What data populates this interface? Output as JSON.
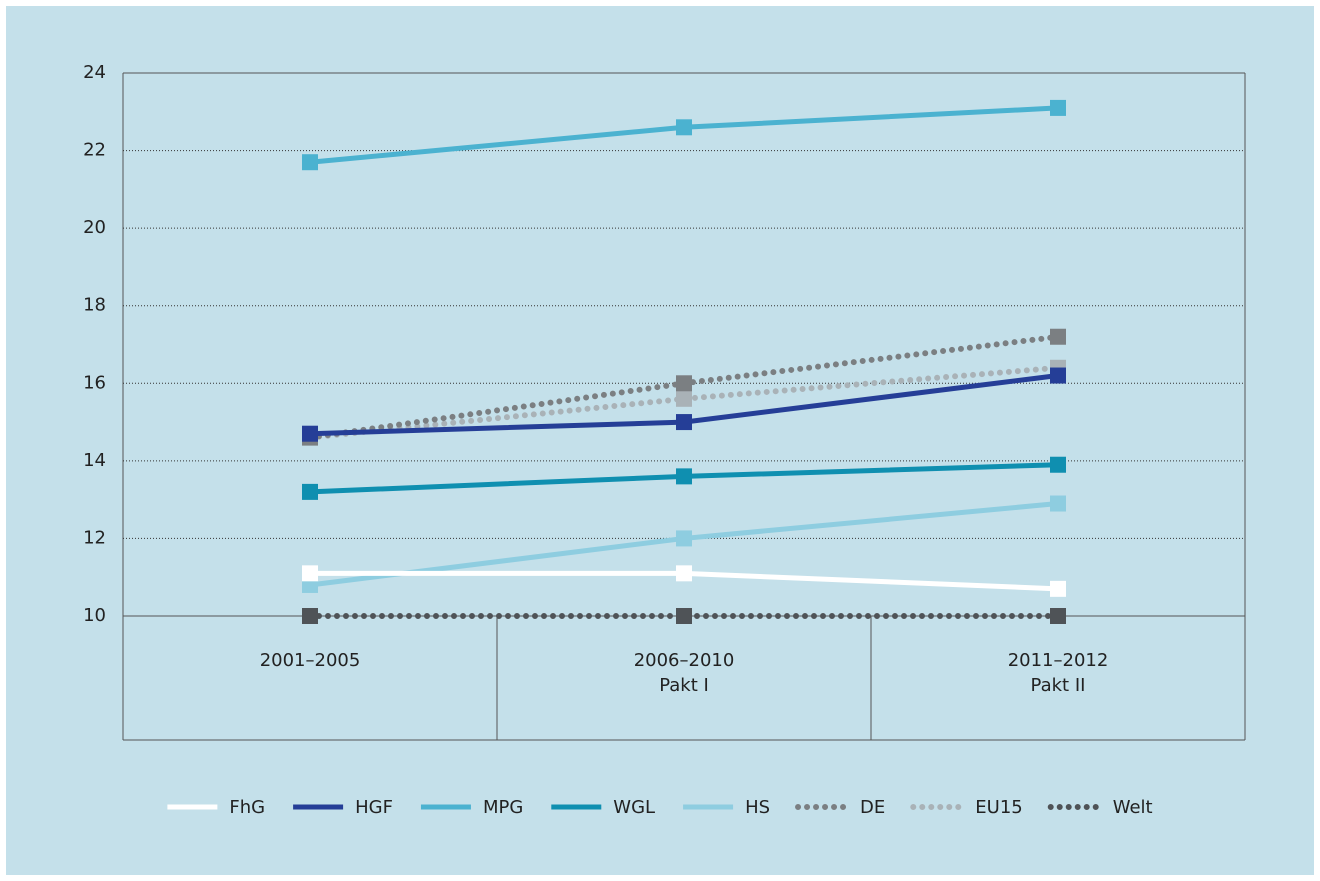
{
  "chart_data": {
    "type": "line",
    "categories": [
      [
        "2001–2005"
      ],
      [
        "2006–2010",
        "Pakt I"
      ],
      [
        "2011–2012",
        "Pakt II"
      ]
    ],
    "ylim": [
      10,
      24
    ],
    "yticks": [
      10,
      12,
      14,
      16,
      18,
      20,
      22,
      24
    ],
    "grid": true,
    "series": [
      {
        "name": "FhG",
        "color": "#ffffff",
        "style": "solid",
        "values": [
          11.1,
          11.1,
          10.7
        ]
      },
      {
        "name": "HGF",
        "color": "#253e97",
        "style": "solid",
        "values": [
          14.7,
          15.0,
          16.2
        ]
      },
      {
        "name": "MPG",
        "color": "#4bb2d0",
        "style": "solid",
        "values": [
          21.7,
          22.6,
          23.1
        ]
      },
      {
        "name": "WGL",
        "color": "#0f8fb0",
        "style": "solid",
        "values": [
          13.2,
          13.6,
          13.9
        ]
      },
      {
        "name": "HS",
        "color": "#8ecde0",
        "style": "solid",
        "values": [
          10.8,
          12.0,
          12.9
        ]
      },
      {
        "name": "DE",
        "color": "#7b7f82",
        "style": "dotted",
        "values": [
          14.6,
          16.0,
          17.2
        ]
      },
      {
        "name": "EU15",
        "color": "#a9b2b7",
        "style": "dotted",
        "values": [
          14.6,
          15.6,
          16.4
        ]
      },
      {
        "name": "Welt",
        "color": "#4f5357",
        "style": "dotted",
        "values": [
          10,
          10,
          10
        ]
      }
    ]
  }
}
